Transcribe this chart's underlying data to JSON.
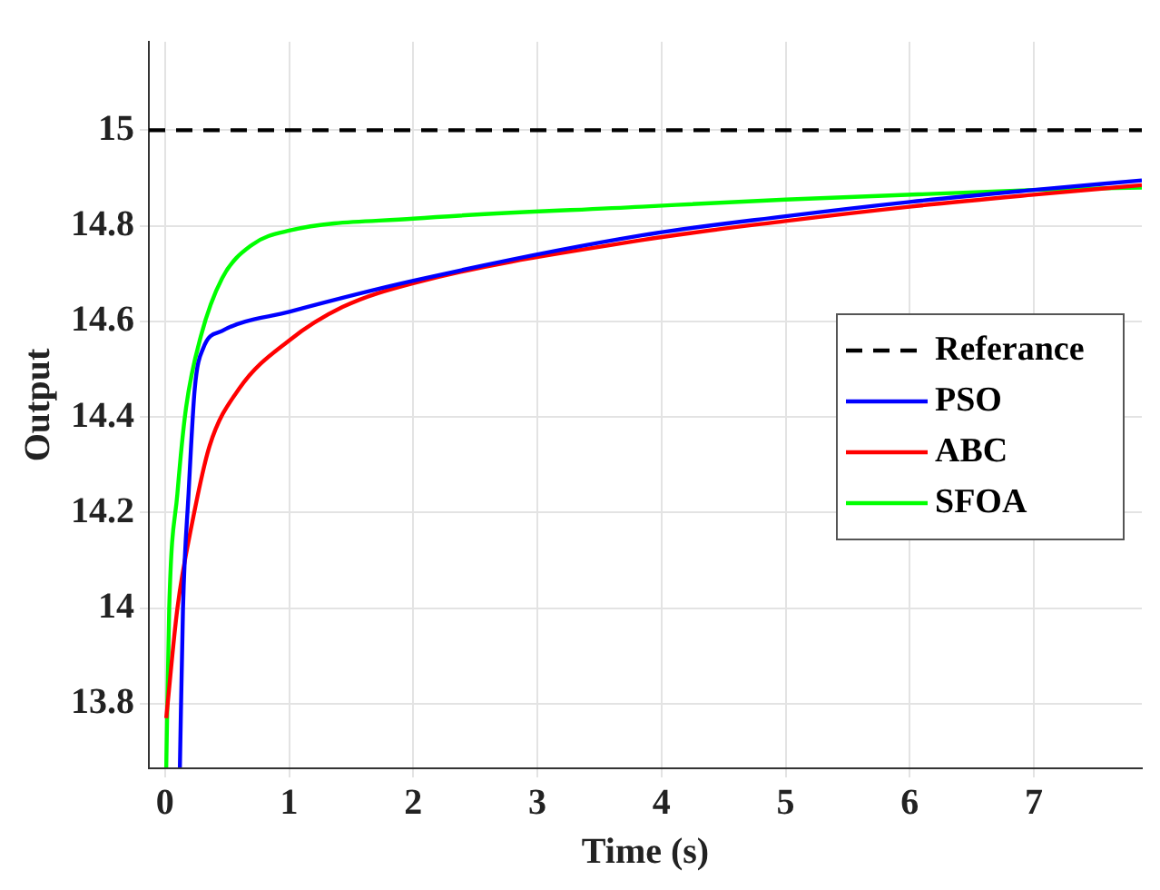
{
  "chart_data": {
    "type": "line",
    "xlabel": "Time (s)",
    "ylabel": "Output",
    "xlim": [
      -0.13,
      7.87
    ],
    "xticks": [
      0,
      1,
      2,
      3,
      4,
      5,
      6,
      7
    ],
    "ylim": [
      13.665,
      15.185
    ],
    "yticks": [
      13.8,
      14,
      14.2,
      14.4,
      14.6,
      14.8,
      15
    ],
    "grid": true,
    "legend": "right",
    "series": [
      {
        "name": "Referance",
        "color": "#000000",
        "line_style": "dashed",
        "x": [
          -0.13,
          7.87
        ],
        "values": [
          15,
          15
        ]
      },
      {
        "name": "PSO",
        "color": "#0000ff",
        "x": [
          0.12,
          0.145,
          0.19,
          0.24,
          0.31,
          0.46,
          1,
          2,
          3.84,
          5,
          6,
          7,
          7.87
        ],
        "values": [
          13.667,
          14.0,
          14.24,
          14.46,
          14.545,
          14.58,
          14.62,
          14.685,
          14.78,
          14.82,
          14.85,
          14.875,
          14.895
        ]
      },
      {
        "name": "ABC",
        "color": "#ff0000",
        "x": [
          0.01,
          0.1,
          0.22,
          0.36,
          0.6,
          1,
          1.43,
          2,
          3.84,
          5,
          6,
          7,
          7.87
        ],
        "values": [
          13.77,
          14.0,
          14.18,
          14.34,
          14.46,
          14.56,
          14.63,
          14.68,
          14.77,
          14.81,
          14.84,
          14.865,
          14.885
        ]
      },
      {
        "name": "SFOA",
        "color": "#00ff00",
        "x": [
          0.01,
          0.034,
          0.1,
          0.17,
          0.29,
          0.46,
          0.7,
          1,
          2,
          3.84,
          5,
          7,
          7.87
        ],
        "values": [
          13.667,
          14.0,
          14.24,
          14.42,
          14.57,
          14.69,
          14.76,
          14.79,
          14.815,
          14.84,
          14.855,
          14.875,
          14.88
        ]
      }
    ]
  }
}
